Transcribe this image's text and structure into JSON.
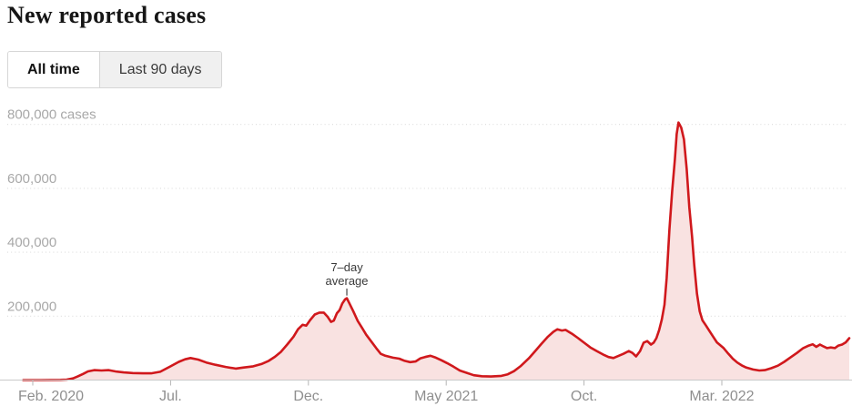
{
  "header": {
    "title": "New reported cases"
  },
  "toggle": {
    "options": [
      {
        "label": "All time",
        "selected": true
      },
      {
        "label": "Last 90 days",
        "selected": false
      }
    ]
  },
  "colors": {
    "line": "#d0181c",
    "fill": "#f9e2e1",
    "grid": "#dcdcdc",
    "axis": "#c9c9c9",
    "tick": "#b5b5b5",
    "y_label": "#a8a8a8",
    "x_label": "#8f8f8f",
    "annotation": "#3a3a3a"
  },
  "chart_data": {
    "type": "area",
    "title": "New reported cases",
    "ylabel": "cases",
    "ylim": [
      0,
      850000
    ],
    "grid": "horizontal-dotted",
    "legend": "none",
    "y_ticks": [
      {
        "value": 200000,
        "label": "200,000"
      },
      {
        "value": 400000,
        "label": "400,000"
      },
      {
        "value": 600000,
        "label": "600,000"
      },
      {
        "value": 800000,
        "label": "800,000 cases"
      }
    ],
    "x_ticks": [
      {
        "date": "2020-02-01",
        "label": "Feb. 2020"
      },
      {
        "date": "2020-07-01",
        "label": "Jul."
      },
      {
        "date": "2020-12-01",
        "label": "Dec."
      },
      {
        "date": "2021-05-01",
        "label": "May 2021"
      },
      {
        "date": "2021-10-01",
        "label": "Oct."
      },
      {
        "date": "2022-03-01",
        "label": "Mar. 2022"
      }
    ],
    "annotation": {
      "lines": [
        "7–day",
        "average"
      ],
      "date": "2021-01-13",
      "value": 256000
    },
    "series": [
      {
        "name": "7-day average of new reported cases",
        "points": [
          [
            "2020-01-21",
            0
          ],
          [
            "2020-02-10",
            0
          ],
          [
            "2020-03-01",
            500
          ],
          [
            "2020-03-08",
            1500
          ],
          [
            "2020-03-15",
            5000
          ],
          [
            "2020-03-20",
            11000
          ],
          [
            "2020-03-26",
            19000
          ],
          [
            "2020-04-01",
            27000
          ],
          [
            "2020-04-08",
            31000
          ],
          [
            "2020-04-16",
            30000
          ],
          [
            "2020-04-24",
            31000
          ],
          [
            "2020-05-01",
            27000
          ],
          [
            "2020-05-10",
            24000
          ],
          [
            "2020-05-20",
            22000
          ],
          [
            "2020-06-01",
            21000
          ],
          [
            "2020-06-10",
            21000
          ],
          [
            "2020-06-20",
            26000
          ],
          [
            "2020-07-01",
            43000
          ],
          [
            "2020-07-10",
            57000
          ],
          [
            "2020-07-17",
            65000
          ],
          [
            "2020-07-23",
            69000
          ],
          [
            "2020-08-01",
            64000
          ],
          [
            "2020-08-10",
            55000
          ],
          [
            "2020-08-20",
            48000
          ],
          [
            "2020-09-01",
            41000
          ],
          [
            "2020-09-12",
            36000
          ],
          [
            "2020-09-20",
            39000
          ],
          [
            "2020-10-01",
            43000
          ],
          [
            "2020-10-10",
            50000
          ],
          [
            "2020-10-18",
            60000
          ],
          [
            "2020-10-25",
            73000
          ],
          [
            "2020-11-01",
            88000
          ],
          [
            "2020-11-08",
            111000
          ],
          [
            "2020-11-15",
            136000
          ],
          [
            "2020-11-20",
            159000
          ],
          [
            "2020-11-25",
            173000
          ],
          [
            "2020-11-29",
            170000
          ],
          [
            "2020-12-03",
            188000
          ],
          [
            "2020-12-08",
            205000
          ],
          [
            "2020-12-13",
            211000
          ],
          [
            "2020-12-18",
            211000
          ],
          [
            "2020-12-22",
            199000
          ],
          [
            "2020-12-26",
            182000
          ],
          [
            "2020-12-29",
            186000
          ],
          [
            "2021-01-02",
            209000
          ],
          [
            "2021-01-05",
            219000
          ],
          [
            "2021-01-08",
            240000
          ],
          [
            "2021-01-11",
            252000
          ],
          [
            "2021-01-13",
            256000
          ],
          [
            "2021-01-16",
            239000
          ],
          [
            "2021-01-20",
            216000
          ],
          [
            "2021-01-25",
            185000
          ],
          [
            "2021-01-30",
            162000
          ],
          [
            "2021-02-04",
            142000
          ],
          [
            "2021-02-10",
            119000
          ],
          [
            "2021-02-15",
            100000
          ],
          [
            "2021-02-20",
            82000
          ],
          [
            "2021-02-25",
            76000
          ],
          [
            "2021-03-03",
            70000
          ],
          [
            "2021-03-10",
            67000
          ],
          [
            "2021-03-16",
            60000
          ],
          [
            "2021-03-22",
            56000
          ],
          [
            "2021-03-28",
            58000
          ],
          [
            "2021-04-03",
            68000
          ],
          [
            "2021-04-08",
            72000
          ],
          [
            "2021-04-14",
            76000
          ],
          [
            "2021-04-20",
            70000
          ],
          [
            "2021-04-26",
            62000
          ],
          [
            "2021-05-02",
            53000
          ],
          [
            "2021-05-09",
            42000
          ],
          [
            "2021-05-16",
            30000
          ],
          [
            "2021-05-23",
            23000
          ],
          [
            "2021-06-01",
            15000
          ],
          [
            "2021-06-10",
            12000
          ],
          [
            "2021-06-20",
            11000
          ],
          [
            "2021-07-01",
            13000
          ],
          [
            "2021-07-08",
            18000
          ],
          [
            "2021-07-15",
            28000
          ],
          [
            "2021-07-22",
            43000
          ],
          [
            "2021-08-01",
            68000
          ],
          [
            "2021-08-08",
            91000
          ],
          [
            "2021-08-15",
            114000
          ],
          [
            "2021-08-22",
            136000
          ],
          [
            "2021-08-28",
            151000
          ],
          [
            "2021-09-02",
            159000
          ],
          [
            "2021-09-07",
            155000
          ],
          [
            "2021-09-11",
            157000
          ],
          [
            "2021-09-18",
            145000
          ],
          [
            "2021-09-25",
            131000
          ],
          [
            "2021-10-01",
            117000
          ],
          [
            "2021-10-08",
            102000
          ],
          [
            "2021-10-15",
            91000
          ],
          [
            "2021-10-22",
            80000
          ],
          [
            "2021-10-28",
            72000
          ],
          [
            "2021-11-03",
            69000
          ],
          [
            "2021-11-08",
            75000
          ],
          [
            "2021-11-14",
            82000
          ],
          [
            "2021-11-20",
            91000
          ],
          [
            "2021-11-24",
            85000
          ],
          [
            "2021-11-28",
            74000
          ],
          [
            "2021-12-02",
            91000
          ],
          [
            "2021-12-06",
            117000
          ],
          [
            "2021-12-10",
            122000
          ],
          [
            "2021-12-14",
            111000
          ],
          [
            "2021-12-17",
            117000
          ],
          [
            "2021-12-20",
            131000
          ],
          [
            "2021-12-23",
            156000
          ],
          [
            "2021-12-26",
            190000
          ],
          [
            "2021-12-29",
            236000
          ],
          [
            "2022-01-01",
            320000
          ],
          [
            "2022-01-04",
            470000
          ],
          [
            "2022-01-07",
            590000
          ],
          [
            "2022-01-10",
            690000
          ],
          [
            "2022-01-12",
            770000
          ],
          [
            "2022-01-14",
            806000
          ],
          [
            "2022-01-17",
            790000
          ],
          [
            "2022-01-20",
            753000
          ],
          [
            "2022-01-23",
            660000
          ],
          [
            "2022-01-26",
            540000
          ],
          [
            "2022-01-29",
            449000
          ],
          [
            "2022-02-01",
            360000
          ],
          [
            "2022-02-04",
            270000
          ],
          [
            "2022-02-07",
            215000
          ],
          [
            "2022-02-10",
            187000
          ],
          [
            "2022-02-14",
            170000
          ],
          [
            "2022-02-18",
            152000
          ],
          [
            "2022-02-22",
            135000
          ],
          [
            "2022-02-26",
            118000
          ],
          [
            "2022-03-03",
            100000
          ],
          [
            "2022-03-08",
            83000
          ],
          [
            "2022-03-13",
            67000
          ],
          [
            "2022-03-18",
            55000
          ],
          [
            "2022-03-23",
            46000
          ],
          [
            "2022-03-28",
            39000
          ],
          [
            "2022-04-05",
            33000
          ],
          [
            "2022-04-12",
            30000
          ],
          [
            "2022-04-18",
            31000
          ],
          [
            "2022-04-25",
            37000
          ],
          [
            "2022-05-02",
            45000
          ],
          [
            "2022-05-09",
            57000
          ],
          [
            "2022-05-16",
            71000
          ],
          [
            "2022-05-23",
            85000
          ],
          [
            "2022-05-30",
            100000
          ],
          [
            "2022-06-05",
            107000
          ],
          [
            "2022-06-10",
            112000
          ],
          [
            "2022-06-14",
            104000
          ],
          [
            "2022-06-18",
            111000
          ],
          [
            "2022-06-22",
            105000
          ],
          [
            "2022-06-26",
            100000
          ],
          [
            "2022-06-30",
            102000
          ],
          [
            "2022-07-04",
            100000
          ],
          [
            "2022-07-08",
            108000
          ],
          [
            "2022-07-12",
            111000
          ],
          [
            "2022-07-16",
            118000
          ],
          [
            "2022-07-20",
            131000
          ]
        ]
      }
    ]
  }
}
